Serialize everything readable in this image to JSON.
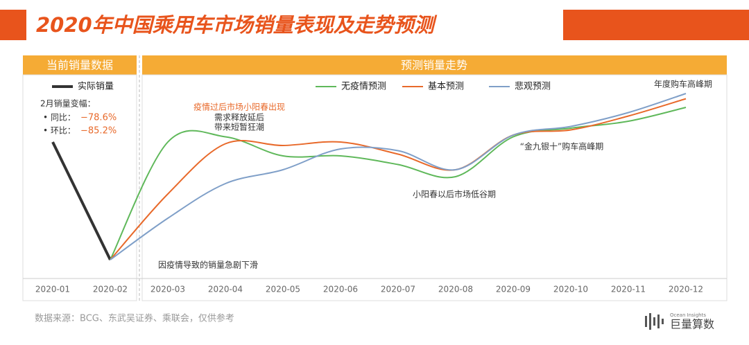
{
  "chart_data": {
    "type": "line",
    "title": "2020年中国乘用车市场销量表现及走势预测",
    "left_header": "当前销量数据",
    "right_header": "预测销量走势",
    "categories": [
      "2020-01",
      "2020-02",
      "2020-03",
      "2020-04",
      "2020-05",
      "2020-06",
      "2020-07",
      "2020-08",
      "2020-09",
      "2020-10",
      "2020-11",
      "2020-12"
    ],
    "ylim": [
      0,
      100
    ],
    "series": [
      {
        "name": "实际销量",
        "color": "#333333",
        "values": [
          68,
          0,
          null,
          null,
          null,
          null,
          null,
          null,
          null,
          null,
          null,
          null
        ]
      },
      {
        "name": "无疫情预测",
        "color": "#5fb85a",
        "values": [
          null,
          0,
          68,
          71,
          60,
          60,
          55,
          48,
          71,
          76,
          80,
          88
        ]
      },
      {
        "name": "基本预测",
        "color": "#e8692a",
        "values": [
          null,
          0,
          38,
          67,
          66,
          68,
          61,
          52,
          72,
          75,
          83,
          93
        ]
      },
      {
        "name": "悲观预测",
        "color": "#7f9fc8",
        "values": [
          null,
          0,
          24,
          44,
          52,
          64,
          63,
          52,
          72,
          77,
          85,
          96
        ]
      }
    ],
    "feb_change": {
      "label": "2月销量变幅：",
      "yoy_label": "• 同比：",
      "yoy": "−78.6%",
      "mom_label": "• 环比：",
      "mom": "−85.2%"
    },
    "annotations": {
      "spring_title": "疫情过后市场小阳春出现",
      "spring_1": "需求释放延后",
      "spring_2": "带来短暂狂潮",
      "drop": "因疫情导致的销量急剧下滑",
      "trough": "小阳春以后市场低谷期",
      "golden": "“金九银十”购车高峰期",
      "peak": "年度购车高峰期"
    },
    "source": "数据来源：BCG、东武吴证券、乘联会，仅供参考",
    "logo_small": "Ocean Insights",
    "logo": "巨量算数"
  }
}
